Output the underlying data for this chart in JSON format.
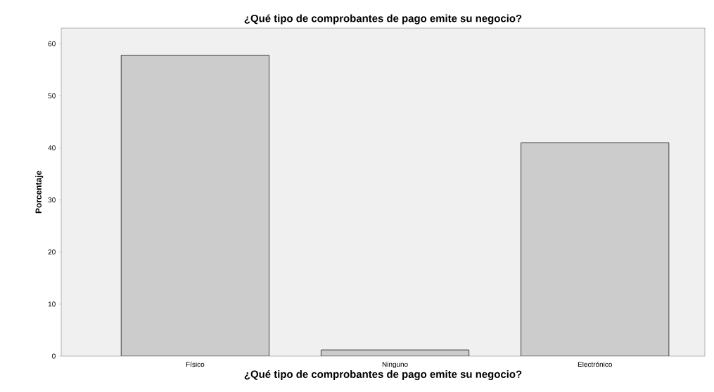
{
  "chart_data": {
    "type": "bar",
    "title": "¿Qué tipo de comprobantes de pago emite su negocio?",
    "xlabel": "¿Qué tipo de comprobantes de pago emite su negocio?",
    "ylabel": "Porcentaje",
    "categories": [
      "Físico",
      "Ninguno",
      "Electrónico"
    ],
    "values": [
      57.8,
      1.2,
      41.0
    ],
    "color": "#cccccc",
    "ylim": [
      0,
      63
    ],
    "yticks": [
      0,
      10,
      20,
      30,
      40,
      50,
      60
    ],
    "grid": false
  }
}
